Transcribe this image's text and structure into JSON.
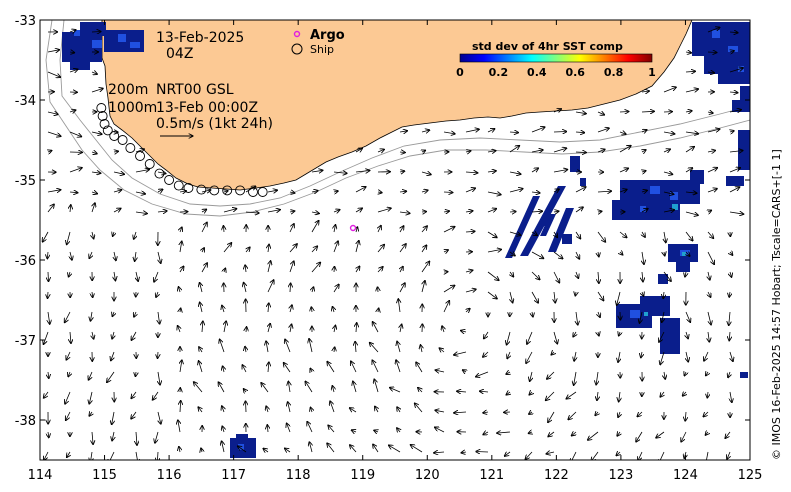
{
  "header": {
    "date": "13-Feb-2025",
    "time": "04Z",
    "depth_line1": "200m",
    "depth_line2": "1000m",
    "product": "NRT00 GSL",
    "product_time": "13-Feb 00:00Z",
    "scale_text": "0.5m/s (1kt 24h)"
  },
  "legend": {
    "argo_label": "Argo",
    "ship_label": "Ship"
  },
  "colorbar": {
    "title": "std dev of 4hr SST comp",
    "ticks": [
      "0",
      "0.2",
      "0.4",
      "0.6",
      "0.8",
      "1"
    ]
  },
  "axes": {
    "x_ticks": [
      "114",
      "115",
      "116",
      "117",
      "118",
      "119",
      "120",
      "121",
      "122",
      "123",
      "124",
      "125"
    ],
    "y_ticks": [
      "-33",
      "-34",
      "-35",
      "-36",
      "-37",
      "-38"
    ],
    "x_range": [
      114,
      125
    ],
    "y_range": [
      -38.5,
      -33
    ]
  },
  "credit": "© IMOS 16-Feb-2025 14:57 Hobart; Tscale=CARS+[-1 1]",
  "colors": {
    "land": "#fcc994",
    "argo": "#e020e0",
    "sst_dark": "#0a1e8c",
    "sst_mid": "#2050e0",
    "sst_light": "#20a0d0"
  },
  "markers": {
    "argo": [
      {
        "lon": 118.85,
        "lat": -35.6
      }
    ],
    "ship_track": [
      [
        114.95,
        -34.1
      ],
      [
        114.97,
        -34.2
      ],
      [
        115.0,
        -34.3
      ],
      [
        115.05,
        -34.38
      ],
      [
        115.15,
        -34.45
      ],
      [
        115.28,
        -34.5
      ],
      [
        115.4,
        -34.6
      ],
      [
        115.55,
        -34.7
      ],
      [
        115.7,
        -34.8
      ],
      [
        115.85,
        -34.92
      ],
      [
        116.0,
        -35.0
      ],
      [
        116.15,
        -35.07
      ],
      [
        116.3,
        -35.1
      ],
      [
        116.5,
        -35.12
      ],
      [
        116.7,
        -35.13
      ],
      [
        116.9,
        -35.13
      ],
      [
        117.1,
        -35.13
      ],
      [
        117.3,
        -35.15
      ],
      [
        117.45,
        -35.15
      ]
    ]
  }
}
